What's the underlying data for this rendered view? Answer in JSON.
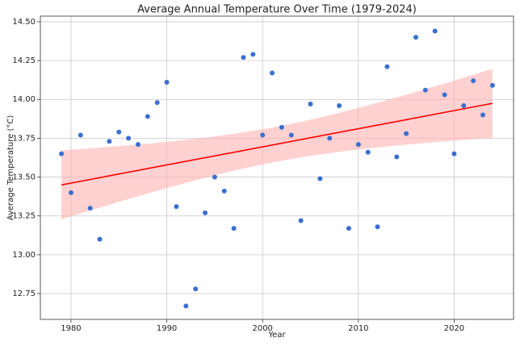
{
  "chart_data": {
    "type": "scatter",
    "title": "Average Annual Temperature Over Time (1979-2024)",
    "x_label": "Year",
    "y_label": "Average Temperature (°C)",
    "x": [
      1979,
      1980,
      1981,
      1982,
      1983,
      1984,
      1985,
      1986,
      1987,
      1988,
      1989,
      1990,
      1991,
      1992,
      1993,
      1994,
      1995,
      1996,
      1997,
      1998,
      1999,
      2000,
      2001,
      2002,
      2003,
      2004,
      2005,
      2006,
      2007,
      2008,
      2009,
      2010,
      2011,
      2012,
      2013,
      2014,
      2015,
      2016,
      2017,
      2018,
      2019,
      2020,
      2021,
      2022,
      2023,
      2024
    ],
    "series": [
      {
        "name": "Average Temperature",
        "color": "#3a6fcf",
        "values": [
          13.65,
          13.4,
          13.77,
          13.3,
          13.1,
          13.73,
          13.79,
          13.75,
          13.71,
          13.89,
          13.98,
          14.11,
          13.31,
          12.67,
          12.78,
          13.27,
          13.5,
          13.41,
          13.17,
          14.27,
          14.29,
          13.77,
          14.17,
          13.82,
          13.77,
          13.22,
          13.97,
          13.49,
          13.75,
          13.96,
          13.17,
          13.71,
          13.66,
          13.18,
          14.21,
          13.63,
          13.78,
          14.4,
          14.06,
          14.44,
          14.03,
          13.65,
          13.96,
          14.12,
          13.9,
          14.09
        ]
      }
    ],
    "trend_color": "#ff0000",
    "band_color": "#ffb3b3",
    "xlim": [
      1976.8,
      2026.2
    ],
    "ylim": [
      12.584,
      14.536
    ],
    "xticks": [
      1980,
      1990,
      2000,
      2010,
      2020
    ],
    "yticks": [
      12.75,
      {
        "value": 13,
        "label": "13.00"
      },
      13.25,
      {
        "value": 13.5,
        "label": "13.50"
      },
      13.75,
      {
        "value": 14,
        "label": "14.00"
      },
      14.25,
      {
        "value": 14.5,
        "label": "14.50"
      }
    ],
    "grid": true
  }
}
